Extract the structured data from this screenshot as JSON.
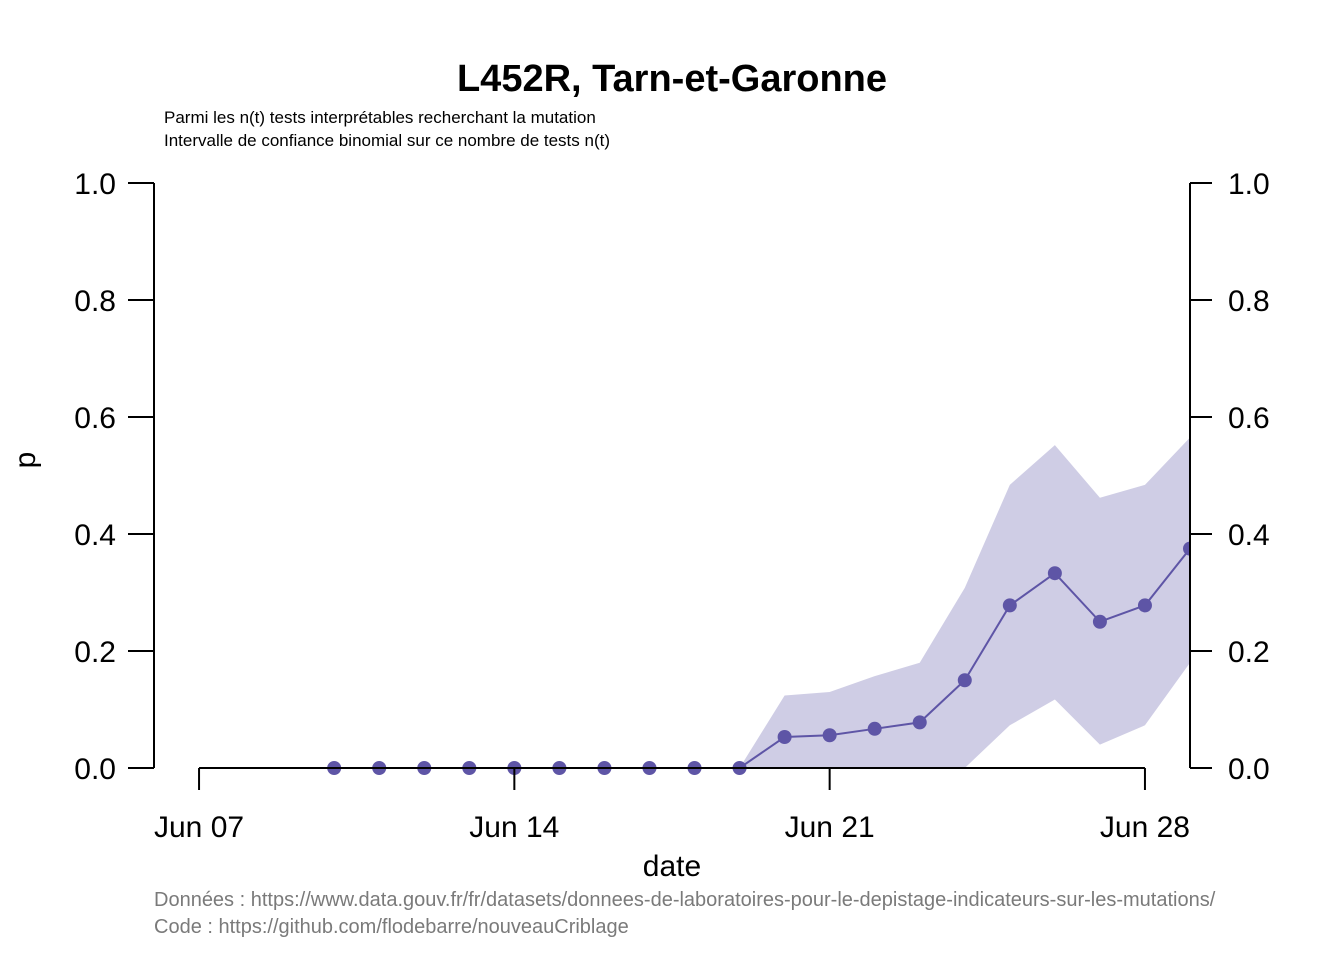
{
  "chart_data": {
    "type": "line",
    "title": "L452R, Tarn-et-Garonne",
    "subtitle_lines": [
      "Parmi les n(t) tests interprétables recherchant la mutation",
      "Intervalle de confiance binomial sur ce nombre de tests n(t)"
    ],
    "xlabel": "date",
    "ylabel": "p",
    "x_ticks": [
      {
        "date": "2021-06-07",
        "label": "Jun 07"
      },
      {
        "date": "2021-06-14",
        "label": "Jun 14"
      },
      {
        "date": "2021-06-21",
        "label": "Jun 21"
      },
      {
        "date": "2021-06-28",
        "label": "Jun 28"
      }
    ],
    "xlim": [
      "2021-06-06",
      "2021-06-29"
    ],
    "ylim": [
      0,
      1
    ],
    "y_ticks": [
      "0.0",
      "0.2",
      "0.4",
      "0.6",
      "0.8",
      "1.0"
    ],
    "y_tick_values": [
      0,
      0.2,
      0.4,
      0.6,
      0.8,
      1.0
    ],
    "series": [
      {
        "x": [
          "2021-06-10",
          "2021-06-11",
          "2021-06-12",
          "2021-06-13",
          "2021-06-14",
          "2021-06-15",
          "2021-06-16",
          "2021-06-17",
          "2021-06-18",
          "2021-06-19",
          "2021-06-20",
          "2021-06-21",
          "2021-06-22",
          "2021-06-23",
          "2021-06-24",
          "2021-06-25",
          "2021-06-26",
          "2021-06-27",
          "2021-06-28",
          "2021-06-29"
        ],
        "values": [
          0,
          0,
          0,
          0,
          0,
          0,
          0,
          0,
          0,
          0,
          0.053,
          0.056,
          0.067,
          0.078,
          0.15,
          0.278,
          0.333,
          0.25,
          0.278,
          0.375
        ],
        "ci_lower": [
          0,
          0,
          0,
          0,
          0,
          0,
          0,
          0,
          0,
          0,
          0,
          0,
          0,
          0,
          0,
          0.073,
          0.117,
          0.04,
          0.073,
          0.18
        ],
        "ci_upper": [
          0,
          0,
          0,
          0,
          0,
          0,
          0,
          0,
          0,
          0,
          0.124,
          0.13,
          0.157,
          0.18,
          0.308,
          0.484,
          0.552,
          0.462,
          0.484,
          0.565
        ]
      }
    ],
    "colors": {
      "line": "#5e55a6",
      "ci_fill": "#cfcde5"
    },
    "grid": false,
    "right_axis": true
  },
  "captions": [
    "Données : https://www.data.gouv.fr/fr/datasets/donnees-de-laboratoires-pour-le-depistage-indicateurs-sur-les-mutations/",
    "Code : https://github.com/flodebarre/nouveauCriblage"
  ]
}
